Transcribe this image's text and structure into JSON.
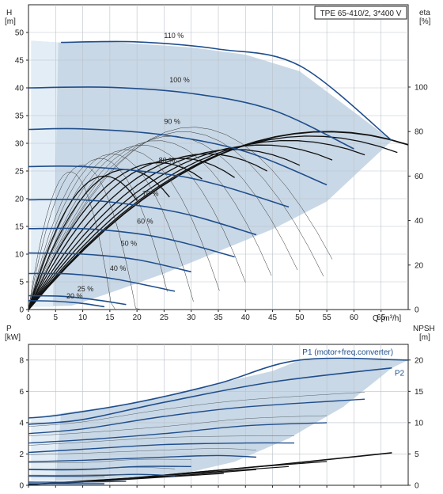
{
  "colors": {
    "curve": "#1f4e8c",
    "region": "#c9d8e6",
    "region_light": "#e3edf6",
    "eta": "#111111",
    "grid": "#b9c2ca",
    "text": "#222222"
  },
  "chart_data": [
    {
      "type": "line",
      "legend_box": "TPE 65-410/2, 3*400 V",
      "left_axis_title": [
        "H",
        "[m]"
      ],
      "right_axis_title": [
        "eta",
        "[%]"
      ],
      "xlabel": "Q [m³/h]",
      "xlim": [
        0,
        70
      ],
      "ylim": [
        0,
        55
      ],
      "x_ticks": [
        0,
        5,
        10,
        15,
        20,
        25,
        30,
        35,
        40,
        45,
        50,
        55,
        60,
        65
      ],
      "y_ticks": [
        0,
        5,
        10,
        15,
        20,
        25,
        30,
        35,
        40,
        45,
        50
      ],
      "eta_ticks": [
        0,
        20,
        40,
        60,
        80,
        100
      ],
      "eta_ylim": [
        0,
        137
      ],
      "operating_region": {
        "upper": [
          [
            0.5,
            48.5
          ],
          [
            5.5,
            48.2
          ],
          [
            15,
            48.3
          ],
          [
            30,
            47.3
          ],
          [
            40,
            46.0
          ],
          [
            50,
            43.0
          ],
          [
            67,
            30.5
          ]
        ],
        "lower": [
          [
            67,
            30.5
          ],
          [
            55,
            19.5
          ],
          [
            45,
            14.5
          ],
          [
            35,
            10.5
          ],
          [
            25,
            6.5
          ],
          [
            15,
            3.0
          ],
          [
            8,
            0.7
          ],
          [
            0.5,
            0.5
          ]
        ]
      },
      "series": [
        {
          "name": "110 %",
          "label_at": [
            25,
            49.0
          ],
          "points": [
            [
              6,
              48.2
            ],
            [
              20,
              48.3
            ],
            [
              35,
              47.0
            ],
            [
              50,
              44.0
            ],
            [
              67,
              30.5
            ]
          ]
        },
        {
          "name": "100 %",
          "label_at": [
            26,
            41.0
          ],
          "points": [
            [
              0,
              40.0
            ],
            [
              15,
              40.1
            ],
            [
              30,
              39.0
            ],
            [
              45,
              36.0
            ],
            [
              60,
              29.0
            ]
          ]
        },
        {
          "name": "90 %",
          "label_at": [
            25,
            33.5
          ],
          "points": [
            [
              0,
              32.5
            ],
            [
              10,
              32.6
            ],
            [
              25,
              31.5
            ],
            [
              40,
              28.5
            ],
            [
              55,
              22.5
            ]
          ]
        },
        {
          "name": "80 %",
          "label_at": [
            24,
            26.5
          ],
          "points": [
            [
              0,
              25.8
            ],
            [
              10,
              25.8
            ],
            [
              25,
              24.5
            ],
            [
              35,
              22.5
            ],
            [
              48,
              18.5
            ]
          ]
        },
        {
          "name": "70 %",
          "label_at": [
            21,
            20.5
          ],
          "points": [
            [
              0,
              19.8
            ],
            [
              10,
              19.8
            ],
            [
              20,
              18.8
            ],
            [
              30,
              17.0
            ],
            [
              42,
              13.5
            ]
          ]
        },
        {
          "name": "60 %",
          "label_at": [
            20,
            15.5
          ],
          "points": [
            [
              0,
              14.6
            ],
            [
              10,
              14.6
            ],
            [
              20,
              13.7
            ],
            [
              28,
              12.2
            ],
            [
              38,
              9.5
            ]
          ]
        },
        {
          "name": "50 %",
          "label_at": [
            17,
            11.5
          ],
          "points": [
            [
              0,
              10.2
            ],
            [
              10,
              10.0
            ],
            [
              20,
              9.0
            ],
            [
              30,
              6.8
            ]
          ]
        },
        {
          "name": "40 %",
          "label_at": [
            15,
            7.0
          ],
          "points": [
            [
              0,
              6.5
            ],
            [
              8,
              6.4
            ],
            [
              16,
              5.5
            ],
            [
              27,
              3.3
            ]
          ]
        },
        {
          "name": "25 %",
          "label_at": [
            9,
            3.3
          ],
          "points": [
            [
              0,
              2.5
            ],
            [
              6,
              2.4
            ],
            [
              12,
              1.8
            ],
            [
              18,
              0.9
            ]
          ]
        },
        {
          "name": "20 %",
          "label_at": [
            7,
            2.0
          ],
          "points": [
            [
              0,
              1.6
            ],
            [
              5,
              1.5
            ],
            [
              10,
              1.1
            ],
            [
              14,
              0.5
            ]
          ]
        }
      ],
      "eta_curves": [
        {
          "peak_eta": 80,
          "peak_q": 55,
          "end_q": 70
        },
        {
          "peak_eta": 78,
          "peak_q": 52,
          "end_q": 68
        },
        {
          "peak_eta": 76,
          "peak_q": 48,
          "end_q": 62
        },
        {
          "peak_eta": 74,
          "peak_q": 43,
          "end_q": 56
        },
        {
          "peak_eta": 72,
          "peak_q": 38,
          "end_q": 50
        },
        {
          "peak_eta": 70,
          "peak_q": 33,
          "end_q": 44
        },
        {
          "peak_eta": 68,
          "peak_q": 28,
          "end_q": 38
        },
        {
          "peak_eta": 66,
          "peak_q": 24,
          "end_q": 32
        },
        {
          "peak_eta": 63,
          "peak_q": 18,
          "end_q": 26
        },
        {
          "peak_eta": 60,
          "peak_q": 14,
          "end_q": 20
        }
      ]
    },
    {
      "type": "line",
      "left_axis_title": [
        "P",
        "[kW]"
      ],
      "right_axis_title": [
        "NPSH",
        "[m]"
      ],
      "xlim": [
        0,
        70
      ],
      "ylim": [
        0,
        9
      ],
      "y_ticks": [
        0,
        2,
        4,
        6,
        8
      ],
      "npsh_ticks": [
        0,
        5,
        10,
        15,
        20
      ],
      "npsh_ylim": [
        0,
        22.5
      ],
      "operating_region": {
        "upper": [
          [
            0.5,
            4.3
          ],
          [
            6,
            4.6
          ],
          [
            15,
            5.0
          ],
          [
            25,
            5.6
          ],
          [
            35,
            6.5
          ],
          [
            45,
            7.3
          ],
          [
            50,
            8.0
          ],
          [
            70,
            8.0
          ]
        ],
        "lower": [
          [
            70,
            8.0
          ],
          [
            67,
            7.5
          ],
          [
            58,
            5.0
          ],
          [
            48,
            3.0
          ],
          [
            38,
            1.5
          ],
          [
            28,
            0.7
          ],
          [
            14,
            0.3
          ],
          [
            0.5,
            0.3
          ]
        ]
      },
      "series": [
        {
          "name": "P1 (motor+freq.converter)",
          "label_at": [
            50.5,
            8.35
          ],
          "points": [
            [
              0,
              4.3
            ],
            [
              6,
              4.5
            ],
            [
              20,
              5.3
            ],
            [
              35,
              6.5
            ],
            [
              50,
              8.0
            ],
            [
              70,
              8.0
            ]
          ]
        },
        {
          "name": "P2",
          "label_at": [
            67.5,
            7.0
          ],
          "points": [
            [
              0,
              3.9
            ],
            [
              10,
              4.2
            ],
            [
              25,
              5.3
            ],
            [
              45,
              6.6
            ],
            [
              67,
              7.5
            ]
          ]
        },
        {
          "name": "",
          "points": [
            [
              0,
              3.3
            ],
            [
              10,
              3.6
            ],
            [
              25,
              4.4
            ],
            [
              40,
              5.0
            ],
            [
              62,
              5.5
            ]
          ]
        },
        {
          "name": "",
          "points": [
            [
              0,
              2.7
            ],
            [
              10,
              2.9
            ],
            [
              25,
              3.3
            ],
            [
              40,
              3.8
            ],
            [
              55,
              4.0
            ]
          ]
        },
        {
          "name": "",
          "points": [
            [
              0,
              2.1
            ],
            [
              10,
              2.3
            ],
            [
              25,
              2.6
            ],
            [
              40,
              2.7
            ],
            [
              49,
              2.7
            ]
          ]
        },
        {
          "name": "",
          "points": [
            [
              0,
              1.5
            ],
            [
              10,
              1.6
            ],
            [
              25,
              1.8
            ],
            [
              35,
              1.9
            ],
            [
              42,
              1.8
            ]
          ]
        },
        {
          "name": "",
          "points": [
            [
              0,
              1.0
            ],
            [
              10,
              1.0
            ],
            [
              20,
              1.2
            ],
            [
              30,
              1.2
            ]
          ]
        },
        {
          "name": "",
          "points": [
            [
              0,
              0.6
            ],
            [
              10,
              0.6
            ],
            [
              20,
              0.7
            ],
            [
              27,
              0.6
            ]
          ]
        },
        {
          "name": "",
          "points": [
            [
              0,
              0.2
            ],
            [
              8,
              0.2
            ],
            [
              18,
              0.25
            ]
          ]
        },
        {
          "name": "",
          "points": [
            [
              0,
              0.1
            ],
            [
              8,
              0.1
            ],
            [
              14,
              0.1
            ]
          ]
        }
      ],
      "npsh_curves": [
        {
          "points": [
            [
              0,
              0.1
            ],
            [
              20,
              1.2
            ],
            [
              45,
              3.2
            ],
            [
              67,
              5.2
            ]
          ]
        },
        {
          "points": [
            [
              0,
              0.1
            ],
            [
              18,
              1.1
            ],
            [
              40,
              2.8
            ],
            [
              55,
              3.8
            ]
          ]
        },
        {
          "points": [
            [
              0,
              0.1
            ],
            [
              15,
              0.9
            ],
            [
              35,
              2.2
            ],
            [
              48,
              3.0
            ]
          ]
        },
        {
          "points": [
            [
              0,
              0.1
            ],
            [
              12,
              0.7
            ],
            [
              30,
              1.7
            ],
            [
              42,
              2.5
            ]
          ]
        },
        {
          "points": [
            [
              0,
              0.1
            ],
            [
              10,
              0.5
            ],
            [
              25,
              1.3
            ],
            [
              36,
              1.9
            ]
          ]
        }
      ]
    }
  ]
}
